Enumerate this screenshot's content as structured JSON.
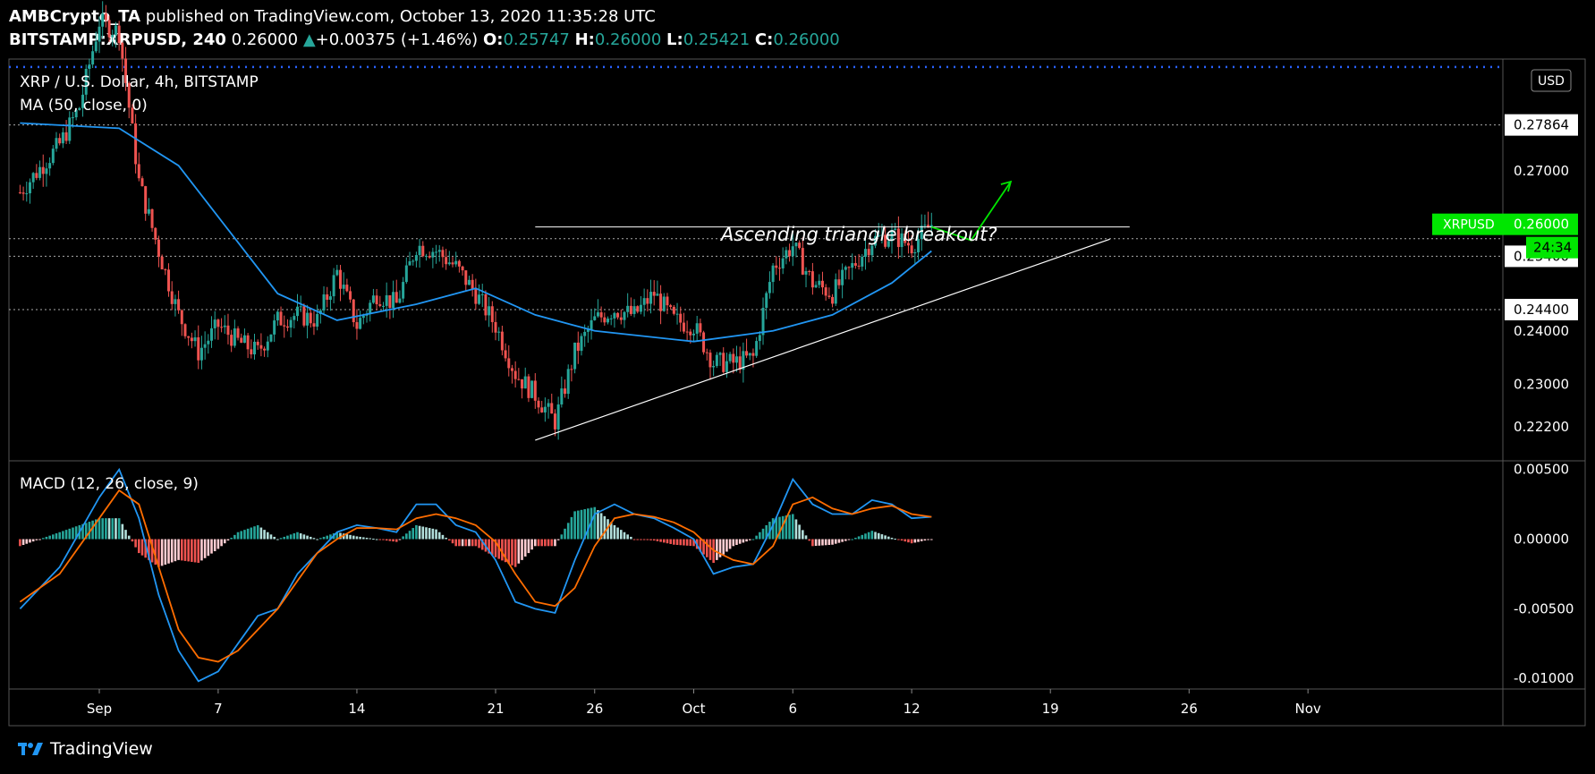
{
  "header": {
    "author": "AMBCrypto_TA",
    "published": "published on TradingView.com, October 13, 2020 11:35:28 UTC",
    "symbol": "BITSTAMP:XRPUSD, 240",
    "last": "0.26000",
    "change_arrow": "▲",
    "change": "+0.00375 (+1.46%)",
    "o_label": "O:",
    "o": "0.25747",
    "h_label": "H:",
    "h": "0.26000",
    "l_label": "L:",
    "l": "0.25421",
    "c_label": "C:",
    "c": "0.26000"
  },
  "footer": {
    "brand": "TradingView"
  },
  "colors": {
    "up": "#26a69a",
    "down": "#ef5350",
    "ma": "#2196f3",
    "signal": "#ff6d00",
    "green_label": "#00e600"
  },
  "chart_data": [
    {
      "type": "candlestick",
      "title": "XRP / U.S. Dollar, 4h, BITSTAMP",
      "indicator": "MA (50, close, 0)",
      "currency_label": "USD",
      "annotation": "Ascending triangle breakout?",
      "ylim": [
        0.2163,
        0.291
      ],
      "y_ticks": [
        "0.27000",
        "0.24000",
        "0.23000",
        "0.22200"
      ],
      "price_levels": [
        "0.27864",
        "0.25400",
        "0.24400"
      ],
      "last_price_label": {
        "symbol": "XRPUSD",
        "price": "0.26000",
        "countdown": "24:34"
      },
      "resistance": 0.2595,
      "support_line": {
        "from": [
          "Sep 23",
          0.2195
        ],
        "to": [
          "Oct 22",
          0.2572
        ]
      },
      "x_ticks": [
        "Sep",
        "7",
        "14",
        "21",
        "26",
        "Oct",
        "6",
        "12",
        "19",
        "26",
        "Nov"
      ],
      "close_path": [
        [
          "Aug 28",
          0.266
        ],
        [
          "Aug 30",
          0.275
        ],
        [
          "Aug 31",
          0.282
        ],
        [
          "Sep 1",
          0.298
        ],
        [
          "Sep 2",
          0.296
        ],
        [
          "Sep 3",
          0.268
        ],
        [
          "Sep 4",
          0.255
        ],
        [
          "Sep 5",
          0.243
        ],
        [
          "Sep 6",
          0.236
        ],
        [
          "Sep 7",
          0.241
        ],
        [
          "Sep 8",
          0.238
        ],
        [
          "Sep 9",
          0.236
        ],
        [
          "Sep 10",
          0.242
        ],
        [
          "Sep 11",
          0.243
        ],
        [
          "Sep 12",
          0.242
        ],
        [
          "Sep 13",
          0.251
        ],
        [
          "Sep 14",
          0.241
        ],
        [
          "Sep 15",
          0.247
        ],
        [
          "Sep 16",
          0.245
        ],
        [
          "Sep 17",
          0.256
        ],
        [
          "Sep 18",
          0.255
        ],
        [
          "Sep 19",
          0.252
        ],
        [
          "Sep 20",
          0.247
        ],
        [
          "Sep 21",
          0.241
        ],
        [
          "Sep 22",
          0.232
        ],
        [
          "Sep 23",
          0.228
        ],
        [
          "Sep 24",
          0.223
        ],
        [
          "Sep 25",
          0.236
        ],
        [
          "Sep 26",
          0.242
        ],
        [
          "Sep 27",
          0.244
        ],
        [
          "Sep 28",
          0.243
        ],
        [
          "Sep 29",
          0.247
        ],
        [
          "Sep 30",
          0.242
        ],
        [
          "Oct 1",
          0.241
        ],
        [
          "Oct 2",
          0.234
        ],
        [
          "Oct 3",
          0.234
        ],
        [
          "Oct 4",
          0.235
        ],
        [
          "Oct 5",
          0.252
        ],
        [
          "Oct 6",
          0.256
        ],
        [
          "Oct 7",
          0.249
        ],
        [
          "Oct 8",
          0.247
        ],
        [
          "Oct 9",
          0.252
        ],
        [
          "Oct 10",
          0.257
        ],
        [
          "Oct 11",
          0.258
        ],
        [
          "Oct 12",
          0.256
        ],
        [
          "Oct 13",
          0.26
        ]
      ],
      "ma50_path": [
        [
          "Aug 28",
          0.279
        ],
        [
          "Sep 2",
          0.278
        ],
        [
          "Sep 5",
          0.271
        ],
        [
          "Sep 10",
          0.247
        ],
        [
          "Sep 13",
          0.242
        ],
        [
          "Sep 17",
          0.245
        ],
        [
          "Sep 20",
          0.248
        ],
        [
          "Sep 23",
          0.243
        ],
        [
          "Sep 26",
          0.24
        ],
        [
          "Oct 1",
          0.238
        ],
        [
          "Oct 5",
          0.24
        ],
        [
          "Oct 8",
          0.243
        ],
        [
          "Oct 11",
          0.249
        ],
        [
          "Oct 13",
          0.255
        ]
      ],
      "projection": [
        [
          "Oct 13",
          0.2595
        ],
        [
          "Oct 15",
          0.257
        ],
        [
          "Oct 17",
          0.268
        ]
      ]
    },
    {
      "type": "line",
      "title": "MACD (12, 26, close, 9)",
      "ylim": [
        -0.0105,
        0.0053
      ],
      "y_ticks": [
        "0.00500",
        "0.00000",
        "-0.00500",
        "-0.01000"
      ],
      "series": [
        {
          "name": "MACD",
          "points": [
            [
              "Aug 28",
              -0.005
            ],
            [
              "Aug 30",
              -0.002
            ],
            [
              "Sep 1",
              0.003
            ],
            [
              "Sep 2",
              0.005
            ],
            [
              "Sep 3",
              0.0015
            ],
            [
              "Sep 4",
              -0.004
            ],
            [
              "Sep 5",
              -0.008
            ],
            [
              "Sep 6",
              -0.0102
            ],
            [
              "Sep 7",
              -0.0095
            ],
            [
              "Sep 8",
              -0.0075
            ],
            [
              "Sep 9",
              -0.0055
            ],
            [
              "Sep 10",
              -0.005
            ],
            [
              "Sep 11",
              -0.0025
            ],
            [
              "Sep 12",
              -0.001
            ],
            [
              "Sep 13",
              0.0005
            ],
            [
              "Sep 14",
              0.001
            ],
            [
              "Sep 15",
              0.0008
            ],
            [
              "Sep 16",
              0.0005
            ],
            [
              "Sep 17",
              0.0025
            ],
            [
              "Sep 18",
              0.0025
            ],
            [
              "Sep 19",
              0.001
            ],
            [
              "Sep 20",
              0.0005
            ],
            [
              "Sep 21",
              -0.0015
            ],
            [
              "Sep 22",
              -0.0045
            ],
            [
              "Sep 23",
              -0.005
            ],
            [
              "Sep 24",
              -0.0053
            ],
            [
              "Sep 25",
              -0.0015
            ],
            [
              "Sep 26",
              0.0018
            ],
            [
              "Sep 27",
              0.0025
            ],
            [
              "Sep 28",
              0.0018
            ],
            [
              "Sep 29",
              0.0015
            ],
            [
              "Sep 30",
              0.0008
            ],
            [
              "Oct 1",
              0.0
            ],
            [
              "Oct 2",
              -0.0025
            ],
            [
              "Oct 3",
              -0.002
            ],
            [
              "Oct 4",
              -0.0018
            ],
            [
              "Oct 5",
              0.001
            ],
            [
              "Oct 6",
              0.0043
            ],
            [
              "Oct 7",
              0.0025
            ],
            [
              "Oct 8",
              0.0018
            ],
            [
              "Oct 9",
              0.0018
            ],
            [
              "Oct 10",
              0.0028
            ],
            [
              "Oct 11",
              0.0025
            ],
            [
              "Oct 12",
              0.0015
            ],
            [
              "Oct 13",
              0.0016
            ]
          ]
        },
        {
          "name": "Signal",
          "points": [
            [
              "Aug 28",
              -0.0045
            ],
            [
              "Aug 30",
              -0.0025
            ],
            [
              "Sep 1",
              0.0015
            ],
            [
              "Sep 2",
              0.0035
            ],
            [
              "Sep 3",
              0.0025
            ],
            [
              "Sep 4",
              -0.002
            ],
            [
              "Sep 5",
              -0.0065
            ],
            [
              "Sep 6",
              -0.0085
            ],
            [
              "Sep 7",
              -0.0088
            ],
            [
              "Sep 8",
              -0.008
            ],
            [
              "Sep 9",
              -0.0065
            ],
            [
              "Sep 10",
              -0.005
            ],
            [
              "Sep 11",
              -0.003
            ],
            [
              "Sep 12",
              -0.001
            ],
            [
              "Sep 13",
              0.0
            ],
            [
              "Sep 14",
              0.0008
            ],
            [
              "Sep 15",
              0.0008
            ],
            [
              "Sep 16",
              0.0007
            ],
            [
              "Sep 17",
              0.0015
            ],
            [
              "Sep 18",
              0.0018
            ],
            [
              "Sep 19",
              0.0015
            ],
            [
              "Sep 20",
              0.001
            ],
            [
              "Sep 21",
              -0.0002
            ],
            [
              "Sep 22",
              -0.0025
            ],
            [
              "Sep 23",
              -0.0045
            ],
            [
              "Sep 24",
              -0.0048
            ],
            [
              "Sep 25",
              -0.0035
            ],
            [
              "Sep 26",
              -0.0005
            ],
            [
              "Sep 27",
              0.0015
            ],
            [
              "Sep 28",
              0.0018
            ],
            [
              "Sep 29",
              0.0016
            ],
            [
              "Sep 30",
              0.0012
            ],
            [
              "Oct 1",
              0.0005
            ],
            [
              "Oct 2",
              -0.0008
            ],
            [
              "Oct 3",
              -0.0015
            ],
            [
              "Oct 4",
              -0.0018
            ],
            [
              "Oct 5",
              -0.0005
            ],
            [
              "Oct 6",
              0.0025
            ],
            [
              "Oct 7",
              0.003
            ],
            [
              "Oct 8",
              0.0022
            ],
            [
              "Oct 9",
              0.0018
            ],
            [
              "Oct 10",
              0.0022
            ],
            [
              "Oct 11",
              0.0024
            ],
            [
              "Oct 12",
              0.0018
            ],
            [
              "Oct 13",
              0.0016
            ]
          ]
        }
      ]
    }
  ]
}
